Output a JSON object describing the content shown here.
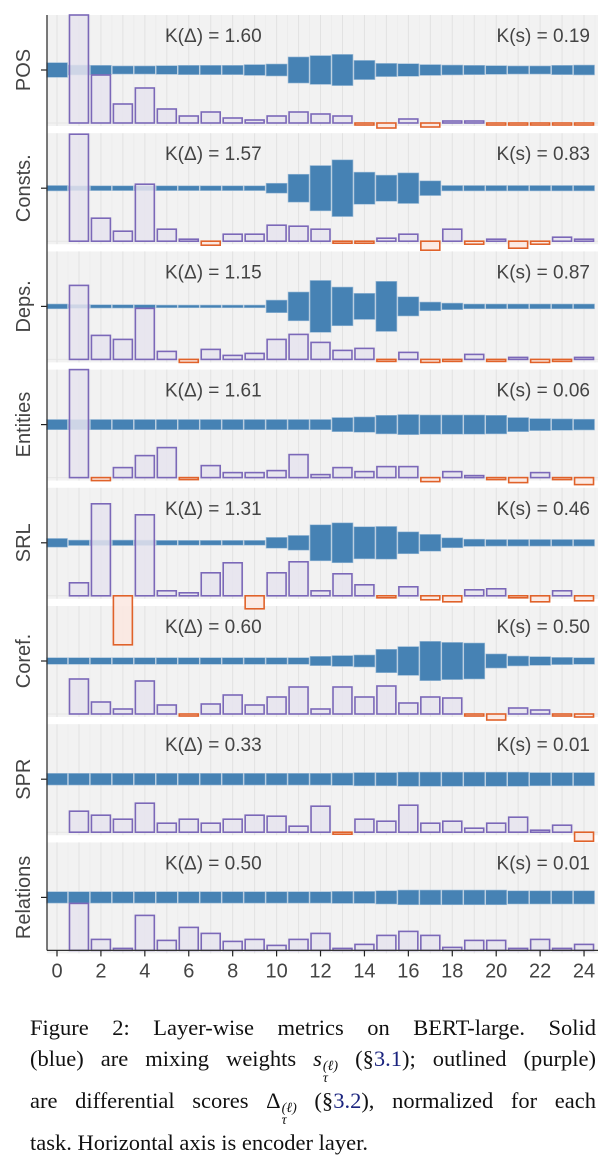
{
  "chart_data": {
    "type": "bar",
    "xlabel": "",
    "x_ticks": [
      "0",
      "2",
      "4",
      "6",
      "8",
      "10",
      "12",
      "14",
      "16",
      "18",
      "20",
      "22",
      "24"
    ],
    "x_range": [
      0,
      24
    ],
    "grid": true,
    "colors": {
      "mixing_weight": "#4682b4",
      "positive_score": "#7b68b8",
      "negative_score": "#e0622a",
      "panel_background": "#f2f2f2"
    },
    "panels": [
      {
        "task": "POS",
        "k_delta_label": "K(Δ) = 1.60",
        "k_s_label": "K(s) = 0.19",
        "mixing_weights": [
          0.049,
          0.033,
          0.031,
          0.027,
          0.027,
          0.029,
          0.031,
          0.031,
          0.031,
          0.036,
          0.04,
          0.087,
          0.096,
          0.104,
          0.064,
          0.044,
          0.042,
          0.036,
          0.033,
          0.031,
          0.029,
          0.027,
          0.027,
          0.031,
          0.033
        ],
        "differential_scores": [
          null,
          1.08,
          0.48,
          0.19,
          0.35,
          0.14,
          0.07,
          0.11,
          0.05,
          0.03,
          0.07,
          0.11,
          0.09,
          0.07,
          -0.01,
          -0.05,
          0.04,
          -0.04,
          0.01,
          0.02,
          -0.02,
          -0.01,
          -0.01,
          -0.01,
          -0.01
        ]
      },
      {
        "task": "Consts.",
        "k_delta_label": "K(Δ) = 1.57",
        "k_s_label": "K(s) = 0.83",
        "mixing_weights": [
          0.018,
          0.016,
          0.016,
          0.016,
          0.016,
          0.016,
          0.016,
          0.016,
          0.016,
          0.016,
          0.033,
          0.093,
          0.151,
          0.189,
          0.107,
          0.087,
          0.102,
          0.049,
          0.018,
          0.018,
          0.018,
          0.018,
          0.018,
          0.018,
          0.018
        ],
        "differential_scores": [
          null,
          1.07,
          0.23,
          0.1,
          0.57,
          0.12,
          0.01,
          -0.04,
          0.07,
          0.07,
          0.16,
          0.15,
          0.12,
          -0.02,
          -0.02,
          0.03,
          0.07,
          -0.09,
          0.12,
          -0.03,
          0.02,
          -0.07,
          -0.03,
          0.04,
          0.02
        ]
      },
      {
        "task": "Deps.",
        "k_delta_label": "K(Δ) = 1.15",
        "k_s_label": "K(s) = 0.87",
        "mixing_weights": [
          0.016,
          0.013,
          0.011,
          0.011,
          0.011,
          0.009,
          0.009,
          0.009,
          0.009,
          0.009,
          0.042,
          0.096,
          0.173,
          0.129,
          0.087,
          0.167,
          0.064,
          0.029,
          0.022,
          0.016,
          0.016,
          0.016,
          0.016,
          0.016,
          0.016
        ],
        "differential_scores": [
          null,
          0.74,
          0.24,
          0.2,
          0.51,
          0.08,
          -0.03,
          0.1,
          0.04,
          0.06,
          0.2,
          0.25,
          0.17,
          0.09,
          0.11,
          -0.01,
          0.07,
          -0.03,
          -0.01,
          0.05,
          -0.01,
          0.01,
          -0.03,
          -0.02,
          0.01
        ]
      },
      {
        "task": "Entities",
        "k_delta_label": "K(Δ) = 1.61",
        "k_s_label": "K(s) = 0.06",
        "mixing_weights": [
          0.034,
          0.034,
          0.034,
          0.034,
          0.034,
          0.034,
          0.034,
          0.034,
          0.034,
          0.034,
          0.034,
          0.034,
          0.034,
          0.047,
          0.051,
          0.062,
          0.067,
          0.064,
          0.064,
          0.064,
          0.062,
          0.047,
          0.04,
          0.038,
          0.036
        ],
        "differential_scores": [
          null,
          1.08,
          -0.03,
          0.1,
          0.22,
          0.3,
          -0.01,
          0.12,
          0.05,
          0.05,
          0.07,
          0.23,
          0.03,
          0.1,
          0.06,
          0.11,
          0.11,
          -0.04,
          0.06,
          0.02,
          -0.01,
          -0.05,
          0.05,
          -0.01,
          -0.07
        ]
      },
      {
        "task": "SRL",
        "k_delta_label": "K(Δ) = 1.31",
        "k_s_label": "K(s) = 0.46",
        "mixing_weights": [
          0.029,
          0.018,
          0.018,
          0.018,
          0.018,
          0.016,
          0.016,
          0.016,
          0.016,
          0.016,
          0.036,
          0.049,
          0.12,
          0.133,
          0.107,
          0.109,
          0.073,
          0.056,
          0.033,
          0.024,
          0.022,
          0.022,
          0.022,
          0.022,
          0.022
        ],
        "differential_scores": [
          null,
          0.13,
          0.92,
          -0.49,
          0.81,
          0.05,
          0.03,
          0.23,
          0.33,
          -0.13,
          0.23,
          0.34,
          0.05,
          0.22,
          0.11,
          -0.01,
          0.09,
          -0.04,
          -0.06,
          0.06,
          0.07,
          -0.01,
          -0.06,
          0.05,
          -0.05
        ]
      },
      {
        "task": "Coref.",
        "k_delta_label": "K(Δ) = 0.60",
        "k_s_label": "K(s) = 0.50",
        "mixing_weights": [
          0.022,
          0.022,
          0.022,
          0.022,
          0.022,
          0.022,
          0.022,
          0.022,
          0.022,
          0.022,
          0.022,
          0.022,
          0.031,
          0.036,
          0.04,
          0.078,
          0.096,
          0.131,
          0.124,
          0.12,
          0.047,
          0.033,
          0.029,
          0.024,
          0.022
        ],
        "differential_scores": [
          null,
          0.35,
          0.12,
          0.05,
          0.33,
          0.09,
          -0.01,
          0.1,
          0.19,
          0.09,
          0.17,
          0.27,
          0.05,
          0.27,
          0.17,
          0.28,
          0.11,
          0.17,
          0.16,
          -0.01,
          -0.06,
          0.06,
          0.04,
          -0.01,
          -0.03
        ]
      },
      {
        "task": "SPR",
        "k_delta_label": "K(Δ) = 0.33",
        "k_s_label": "K(s) = 0.01",
        "mixing_weights": [
          0.039,
          0.039,
          0.039,
          0.039,
          0.039,
          0.039,
          0.039,
          0.039,
          0.039,
          0.039,
          0.039,
          0.039,
          0.039,
          0.041,
          0.044,
          0.044,
          0.047,
          0.047,
          0.047,
          0.047,
          0.047,
          0.047,
          0.044,
          0.044,
          0.044
        ],
        "differential_scores": [
          null,
          0.21,
          0.17,
          0.13,
          0.29,
          0.09,
          0.13,
          0.09,
          0.13,
          0.17,
          0.16,
          0.06,
          0.26,
          -0.01,
          0.13,
          0.11,
          0.27,
          0.09,
          0.11,
          0.04,
          0.09,
          0.15,
          0.01,
          0.07,
          -0.09
        ]
      },
      {
        "task": "Relations",
        "k_delta_label": "K(Δ) = 0.50",
        "k_s_label": "K(s) = 0.01",
        "mixing_weights": [
          0.038,
          0.038,
          0.038,
          0.038,
          0.038,
          0.038,
          0.038,
          0.038,
          0.038,
          0.038,
          0.038,
          0.038,
          0.038,
          0.04,
          0.04,
          0.044,
          0.049,
          0.049,
          0.049,
          0.049,
          0.049,
          0.044,
          0.044,
          0.044,
          0.044
        ],
        "differential_scores": [
          null,
          0.47,
          0.11,
          0.0,
          0.35,
          0.1,
          0.23,
          0.17,
          0.09,
          0.11,
          0.05,
          0.11,
          0.17,
          0.01,
          0.06,
          0.15,
          0.19,
          0.15,
          0.03,
          0.1,
          0.1,
          0.02,
          0.11,
          0.0,
          0.06
        ]
      }
    ]
  },
  "caption": {
    "l1": "Figure 2:  Layer-wise metrics on BERT-large.  Solid",
    "l2_a": "(blue) are mixing weights ",
    "l2_sym": "s",
    "l2_sup": "(ℓ)",
    "l2_sub": "τ",
    "l2_b": " (§",
    "l2_ref": "3.1",
    "l2_c": "); outlined (purple)",
    "l3_a": "are differential scores ",
    "l3_sym": "Δ",
    "l3_sup": "(ℓ)",
    "l3_sub": "τ",
    "l3_b": " (§",
    "l3_ref": "3.2",
    "l3_c": "), normalized for each",
    "l4": "task. Horizontal axis is encoder layer."
  }
}
